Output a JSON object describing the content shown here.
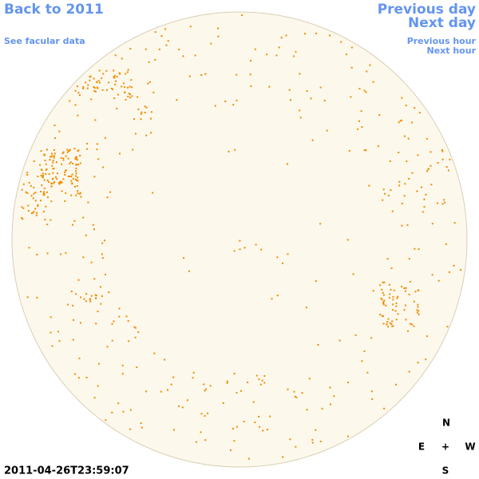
{
  "nav": {
    "back": "Back to 2011",
    "facular_data": "See facular data",
    "previous_day": "Previous day",
    "next_day": "Next day",
    "previous_hour": "Previous hour",
    "next_hour": "Next hour"
  },
  "timestamp": "2011-04-26T23:59:07",
  "compass": {
    "north": "N",
    "east": "E",
    "center": "+",
    "west": "W",
    "south": "S"
  }
}
